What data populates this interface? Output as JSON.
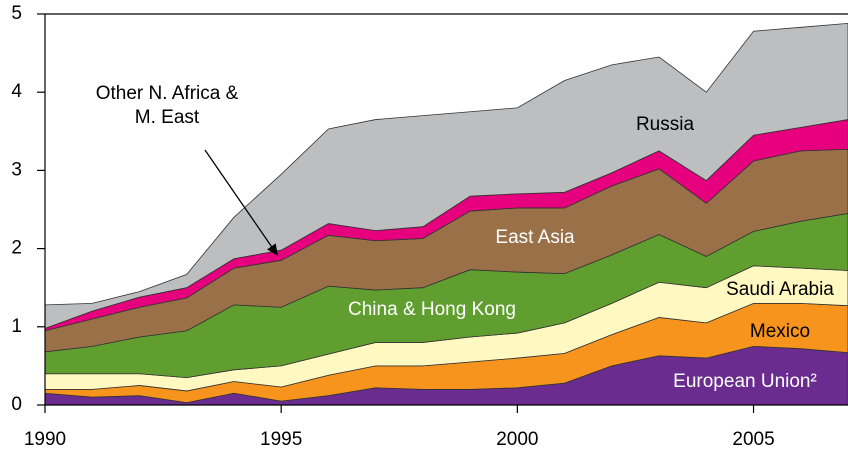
{
  "chart_data": {
    "type": "stacked_area",
    "x": [
      1990,
      1991,
      1992,
      1993,
      1994,
      1995,
      1996,
      1997,
      1998,
      1999,
      2000,
      2001,
      2002,
      2003,
      2004,
      2005,
      2006,
      2007
    ],
    "xlim": [
      1990,
      2007
    ],
    "xticks": [
      1990,
      1995,
      2000,
      2005
    ],
    "ylim": [
      0,
      5
    ],
    "yticks": [
      0,
      1,
      2,
      3,
      4,
      5
    ],
    "series": [
      {
        "name": "European Union²",
        "color": "#6a2c8f",
        "values": [
          0.15,
          0.1,
          0.12,
          0.03,
          0.15,
          0.05,
          0.12,
          0.22,
          0.2,
          0.2,
          0.22,
          0.28,
          0.5,
          0.63,
          0.6,
          0.75,
          0.72,
          0.67
        ]
      },
      {
        "name": "Mexico",
        "color": "#f7941d",
        "values": [
          0.05,
          0.1,
          0.13,
          0.15,
          0.15,
          0.18,
          0.26,
          0.28,
          0.3,
          0.35,
          0.38,
          0.38,
          0.4,
          0.49,
          0.45,
          0.55,
          0.58,
          0.6
        ]
      },
      {
        "name": "Saudi Arabia",
        "color": "#fff8c0",
        "values": [
          0.2,
          0.2,
          0.15,
          0.17,
          0.15,
          0.27,
          0.27,
          0.3,
          0.3,
          0.32,
          0.32,
          0.39,
          0.4,
          0.45,
          0.45,
          0.48,
          0.45,
          0.45
        ]
      },
      {
        "name": "China & Hong Kong",
        "color": "#5f9e2f",
        "values": [
          0.28,
          0.35,
          0.47,
          0.6,
          0.83,
          0.75,
          0.87,
          0.67,
          0.7,
          0.86,
          0.78,
          0.63,
          0.62,
          0.61,
          0.4,
          0.44,
          0.6,
          0.73
        ]
      },
      {
        "name": "East Asia",
        "color": "#9a7049",
        "values": [
          0.27,
          0.35,
          0.38,
          0.42,
          0.47,
          0.6,
          0.65,
          0.63,
          0.63,
          0.75,
          0.82,
          0.84,
          0.88,
          0.84,
          0.68,
          0.9,
          0.9,
          0.82
        ]
      },
      {
        "name": "Other N. Africa & M. East",
        "color": "#e6007e",
        "values": [
          0.03,
          0.1,
          0.13,
          0.13,
          0.12,
          0.13,
          0.15,
          0.13,
          0.15,
          0.19,
          0.18,
          0.2,
          0.17,
          0.23,
          0.29,
          0.33,
          0.3,
          0.38
        ]
      },
      {
        "name": "Russia",
        "color": "#bcbec0",
        "values": [
          0.3,
          0.1,
          0.07,
          0.17,
          0.53,
          0.97,
          1.21,
          1.42,
          1.42,
          1.08,
          1.1,
          1.43,
          1.38,
          1.2,
          1.13,
          1.33,
          1.28,
          1.23
        ]
      }
    ]
  }
}
